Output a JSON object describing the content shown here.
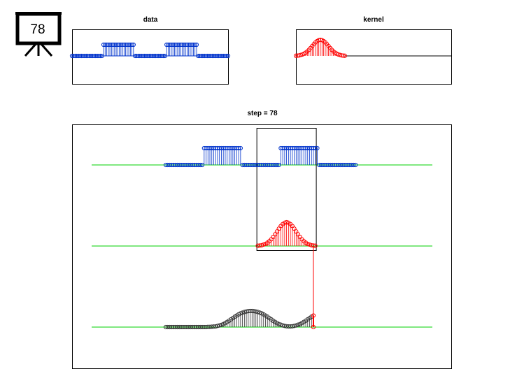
{
  "icon_label": "78",
  "chart_data": [
    {
      "type": "stem",
      "title": "data",
      "color": "#0033cc",
      "values": [
        0,
        0,
        0,
        0,
        0,
        0,
        0,
        0,
        0,
        0,
        0,
        0,
        0,
        0,
        0,
        0,
        0,
        0,
        0,
        0,
        1,
        1,
        1,
        1,
        1,
        1,
        1,
        1,
        1,
        1,
        1,
        1,
        1,
        1,
        1,
        1,
        1,
        1,
        1,
        1,
        0,
        0,
        0,
        0,
        0,
        0,
        0,
        0,
        0,
        0,
        0,
        0,
        0,
        0,
        0,
        0,
        0,
        0,
        0,
        0,
        1,
        1,
        1,
        1,
        1,
        1,
        1,
        1,
        1,
        1,
        1,
        1,
        1,
        1,
        1,
        1,
        1,
        1,
        1,
        1,
        0,
        0,
        0,
        0,
        0,
        0,
        0,
        0,
        0,
        0,
        0,
        0,
        0,
        0,
        0,
        0,
        0,
        0,
        0,
        0
      ]
    },
    {
      "type": "stem",
      "title": "kernel",
      "color": "#ff0000",
      "values": [
        0.01,
        0.02,
        0.03,
        0.06,
        0.09,
        0.14,
        0.2,
        0.28,
        0.38,
        0.49,
        0.61,
        0.73,
        0.84,
        0.92,
        0.98,
        1,
        0.98,
        0.92,
        0.84,
        0.73,
        0.61,
        0.49,
        0.38,
        0.28,
        0.2,
        0.14,
        0.09,
        0.06,
        0.03,
        0.02,
        0.01
      ]
    },
    {
      "type": "convolution",
      "title": "step = 78",
      "color": "#333333",
      "highlight_color": "#ff0000",
      "values": [
        0,
        0,
        0,
        0,
        0,
        0,
        0,
        0,
        0,
        0,
        0,
        0,
        0,
        0,
        0,
        0,
        0,
        0,
        0,
        0,
        0,
        0,
        0.01,
        0.01,
        0.02,
        0.03,
        0.04,
        0.07,
        0.1,
        0.13,
        0.18,
        0.24,
        0.31,
        0.38,
        0.46,
        0.54,
        0.62,
        0.69,
        0.76,
        0.82,
        0.86,
        0.9,
        0.93,
        0.95,
        0.96,
        0.96,
        0.95,
        0.93,
        0.9,
        0.86,
        0.82,
        0.76,
        0.69,
        0.62,
        0.54,
        0.46,
        0.38,
        0.31,
        0.24,
        0.18,
        0.14,
        0.1,
        0.07,
        0.05,
        0.04,
        0.04,
        0.05,
        0.07,
        0.1,
        0.14,
        0.18,
        0.24,
        0.31,
        0.38,
        0.46,
        0.54,
        0.62,
        0.69
      ]
    }
  ]
}
